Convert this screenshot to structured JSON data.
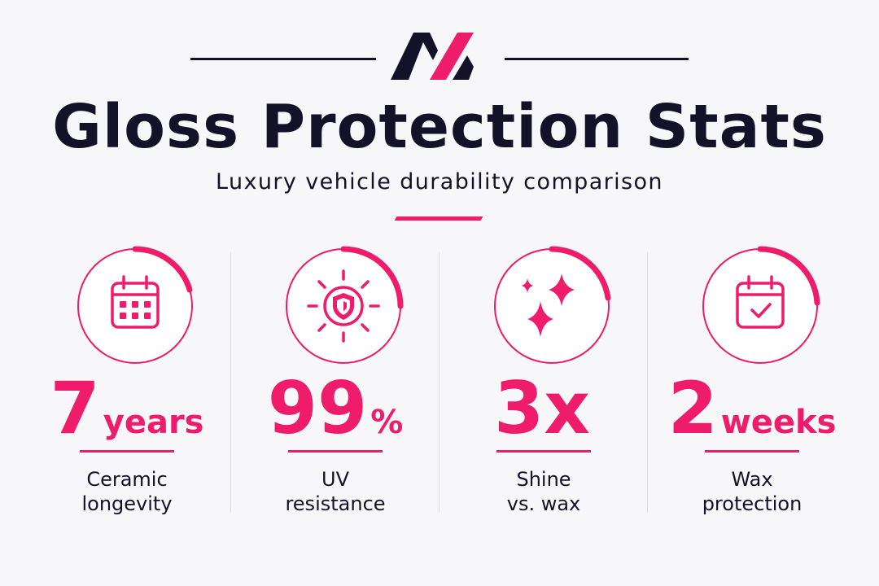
{
  "header": {
    "title": "Gloss Protection Stats",
    "subtitle": "Luxury vehicle durability comparison"
  },
  "colors": {
    "accent": "#ee1c6a",
    "dark": "#141228",
    "background": "#f7f7f9"
  },
  "stats": [
    {
      "icon": "calendar-grid-icon",
      "number": "7",
      "unit": "years",
      "label_line1": "Ceramic",
      "label_line2": "longevity"
    },
    {
      "icon": "sun-shield-icon",
      "number": "99",
      "unit": "%",
      "label_line1": "UV",
      "label_line2": "resistance"
    },
    {
      "icon": "sparkles-icon",
      "number": "3x",
      "unit": "",
      "label_line1": "Shine",
      "label_line2": "vs. wax"
    },
    {
      "icon": "calendar-check-icon",
      "number": "2",
      "unit": "weeks",
      "label_line1": "Wax",
      "label_line2": "protection"
    }
  ]
}
